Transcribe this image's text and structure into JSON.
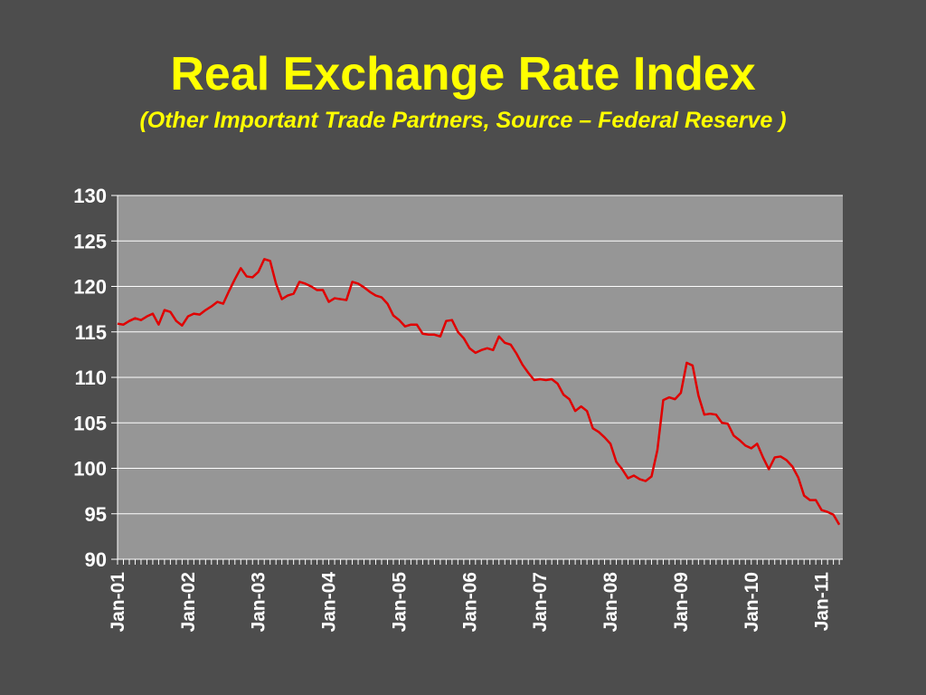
{
  "colors": {
    "background": "#4d4d4d",
    "title": "#ffff00",
    "plot_area": "#969696",
    "gridline": "#ffffff",
    "series_line": "#e00000",
    "tick_text": "#ffffff"
  },
  "chart_data": {
    "type": "line",
    "title": "Real Exchange Rate Index",
    "subtitle": "(Other Important Trade Partners, Source – Federal Reserve )",
    "xlabel": "",
    "ylabel": "",
    "ylim": [
      90,
      130
    ],
    "yticks": [
      "130",
      "125",
      "120",
      "115",
      "110",
      "105",
      "100",
      "95",
      "90"
    ],
    "xticks": [
      "Jan-01",
      "Jan-02",
      "Jan-03",
      "Jan-04",
      "Jan-05",
      "Jan-06",
      "Jan-07",
      "Jan-08",
      "Jan-09",
      "Jan-10",
      "Jan-11"
    ],
    "grid": true,
    "legend": "none",
    "x_start": "Jan-01",
    "x_frequency": "monthly",
    "series": [
      {
        "values": [
          115.9,
          115.8,
          116.2,
          116.5,
          116.3,
          116.7,
          117.0,
          115.8,
          117.4,
          117.2,
          116.2,
          115.7,
          116.7,
          117.0,
          116.9,
          117.4,
          117.8,
          118.3,
          118.1,
          119.5,
          120.8,
          122.0,
          121.1,
          121.0,
          121.6,
          123.0,
          122.8,
          120.3,
          118.6,
          119.0,
          119.2,
          120.5,
          120.3,
          120.0,
          119.6,
          119.6,
          118.3,
          118.7,
          118.6,
          118.5,
          120.5,
          120.3,
          119.9,
          119.4,
          119.0,
          118.8,
          118.1,
          116.8,
          116.3,
          115.6,
          115.8,
          115.8,
          114.8,
          114.7,
          114.7,
          114.5,
          116.2,
          116.3,
          115.0,
          114.3,
          113.2,
          112.7,
          113.0,
          113.2,
          113.0,
          114.5,
          113.8,
          113.6,
          112.6,
          111.4,
          110.5,
          109.7,
          109.8,
          109.7,
          109.8,
          109.3,
          108.1,
          107.6,
          106.3,
          106.8,
          106.3,
          104.4,
          104.0,
          103.4,
          102.7,
          100.7,
          99.9,
          98.9,
          99.2,
          98.8,
          98.6,
          99.1,
          102.0,
          107.5,
          107.8,
          107.6,
          108.3,
          111.6,
          111.3,
          108.0,
          105.9,
          106.0,
          105.9,
          105.0,
          104.9,
          103.6,
          103.1,
          102.5,
          102.2,
          102.7,
          101.2,
          99.9,
          101.2,
          101.3,
          100.9,
          100.2,
          99.0,
          97.0,
          96.5,
          96.5,
          95.4,
          95.2,
          94.9,
          93.8
        ]
      }
    ]
  }
}
